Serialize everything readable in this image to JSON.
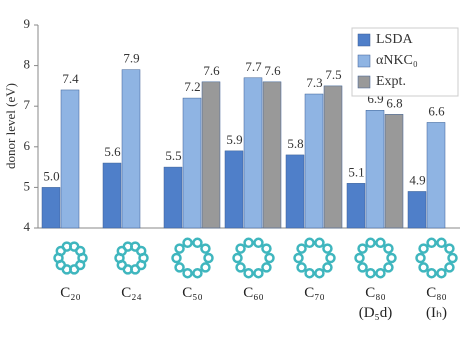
{
  "chart_data": {
    "type": "bar",
    "categories": [
      "C₂₀",
      "C₂₄",
      "C₅₀",
      "C₆₀",
      "C₇₀",
      "C₈₀\n(D₅d)",
      "C₈₀\n(Iₕ)"
    ],
    "series": [
      {
        "name": "LSDA",
        "color": "#4f7fc9",
        "values": [
          5.0,
          5.6,
          5.5,
          5.9,
          5.8,
          5.1,
          4.9
        ],
        "value_labels": [
          "5.0",
          "5.6",
          "5.5",
          "5.9",
          "5.8",
          "5.1",
          "4.9"
        ]
      },
      {
        "name": "αNKC₀",
        "color": "#8fb4e3",
        "values": [
          7.4,
          7.9,
          7.2,
          7.7,
          7.3,
          6.9,
          6.6
        ],
        "value_labels": [
          "7.4",
          "7.9",
          "7.2",
          "7.7",
          "7.3",
          "6.9",
          "6.6"
        ]
      },
      {
        "name": "Expt.",
        "color": "#999999",
        "values": [
          null,
          null,
          7.6,
          7.6,
          7.5,
          6.8,
          null
        ],
        "value_labels": [
          null,
          null,
          "7.6",
          "7.6",
          "7.5",
          "6.8",
          null
        ]
      }
    ],
    "ylabel": "donor level (eV)",
    "ylim": [
      4,
      9
    ],
    "yticks": [
      4,
      5,
      6,
      7,
      8,
      9
    ],
    "legend": "upper right"
  }
}
